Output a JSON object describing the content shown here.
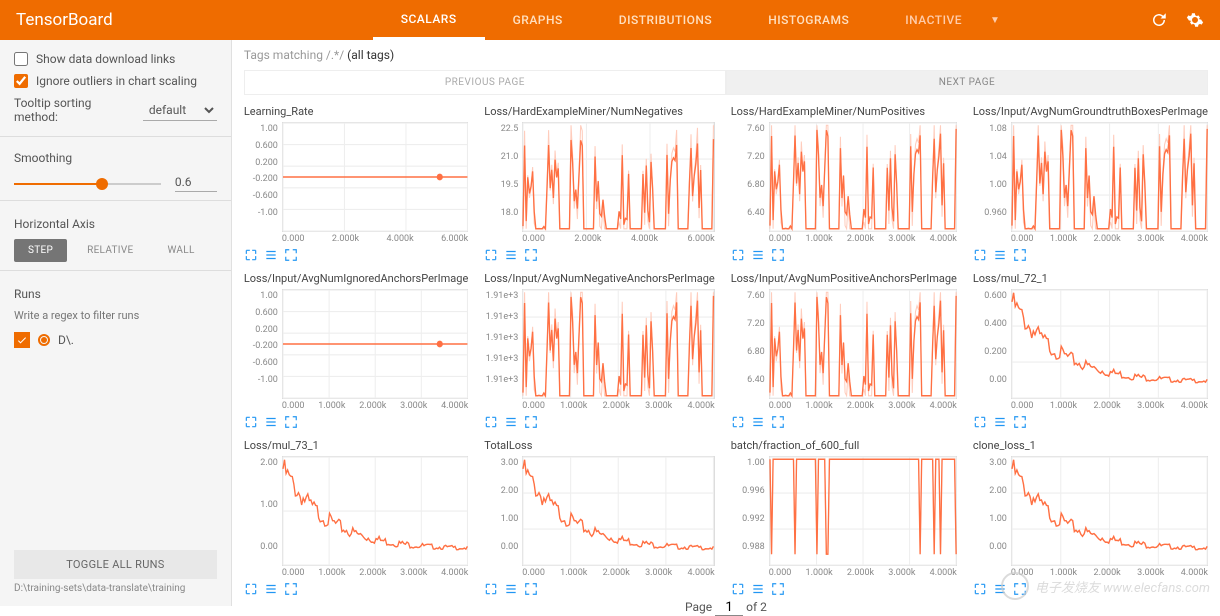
{
  "header": {
    "logo": "TensorBoard",
    "tabs": [
      "SCALARS",
      "GRAPHS",
      "DISTRIBUTIONS",
      "HISTOGRAMS",
      "INACTIVE"
    ]
  },
  "sidebar": {
    "show_dl": "Show data download links",
    "ignore_out": "Ignore outliers in chart scaling",
    "tooltip_label": "Tooltip sorting method:",
    "tooltip_value": "default",
    "smoothing_label": "Smoothing",
    "smoothing_value": "0.6",
    "haxis_label": "Horizontal Axis",
    "haxis_opts": [
      "STEP",
      "RELATIVE",
      "WALL"
    ],
    "runs_label": "Runs",
    "filter_placeholder": "Write a regex to filter runs",
    "run_name": "D\\.",
    "toggle": "TOGGLE ALL RUNS",
    "path": "D:\\training-sets\\data-translate\\training"
  },
  "content": {
    "tags_prefix": "Tags matching /.*/ ",
    "tags_bold": "(all tags)",
    "prev": "PREVIOUS PAGE",
    "next": "NEXT PAGE",
    "page_label": "Page",
    "page_cur": "1",
    "page_of": "of 2"
  },
  "colors": {
    "accent": "#ef6c00",
    "line": "#ff7043",
    "line_light": "#ffccbc",
    "grid": "#eeeeee"
  },
  "xticks_long": [
    "0.000",
    "2.000k",
    "4.000k",
    "6.000k"
  ],
  "xticks": [
    "0.000",
    "1.000k",
    "2.000k",
    "3.000k",
    "4.000k"
  ],
  "charts": [
    {
      "title": "Learning_Rate",
      "yticks": [
        "1.00",
        "0.600",
        "0.200",
        "-0.200",
        "-0.600",
        "-1.00"
      ],
      "type": "flat",
      "y": 0.5,
      "x": "long"
    },
    {
      "title": "Loss/HardExampleMiner/NumNegatives",
      "yticks": [
        "22.5",
        "21.0",
        "19.5",
        "18.0"
      ],
      "type": "noise",
      "base": 0.45,
      "amp": 0.45,
      "x": "long"
    },
    {
      "title": "Loss/HardExampleMiner/NumPositives",
      "yticks": [
        "7.60",
        "7.20",
        "6.80",
        "6.40"
      ],
      "type": "noise",
      "base": 0.5,
      "amp": 0.5
    },
    {
      "title": "Loss/Input/AvgNumGroundtruthBoxesPerImage",
      "yticks": [
        "1.08",
        "1.04",
        "1.00",
        "0.960"
      ],
      "type": "noise",
      "base": 0.5,
      "amp": 0.5
    },
    {
      "title": "Loss/Input/AvgNumIgnoredAnchorsPerImage",
      "yticks": [
        "1.00",
        "0.600",
        "0.200",
        "-0.200",
        "-0.600",
        "-1.00"
      ],
      "type": "flat",
      "y": 0.5
    },
    {
      "title": "Loss/Input/AvgNumNegativeAnchorsPerImage",
      "yticks": [
        "1.91e+3",
        "1.91e+3",
        "1.91e+3",
        "1.91e+3",
        "1.91e+3"
      ],
      "type": "noise",
      "base": 0.5,
      "amp": 0.5
    },
    {
      "title": "Loss/Input/AvgNumPositiveAnchorsPerImage",
      "yticks": [
        "7.60",
        "7.20",
        "6.80",
        "6.40"
      ],
      "type": "noise",
      "base": 0.5,
      "amp": 0.5
    },
    {
      "title": "Loss/mul_72_1",
      "yticks": [
        "0.600",
        "0.400",
        "0.200",
        "0.00"
      ],
      "type": "decay"
    },
    {
      "title": "Loss/mul_73_1",
      "yticks": [
        "2.00",
        "1.00",
        "0.00"
      ],
      "type": "decay"
    },
    {
      "title": "TotalLoss",
      "yticks": [
        "3.00",
        "2.00",
        "1.00",
        "0.00"
      ],
      "type": "decay"
    },
    {
      "title": "batch/fraction_of_600_full",
      "yticks": [
        "1.00",
        "0.996",
        "0.992",
        "0.988"
      ],
      "type": "spikes"
    },
    {
      "title": "clone_loss_1",
      "yticks": [
        "3.00",
        "2.00",
        "1.00",
        "0.00"
      ],
      "type": "decay"
    }
  ],
  "watermark": "电子发烧友 www.elecfans.com"
}
